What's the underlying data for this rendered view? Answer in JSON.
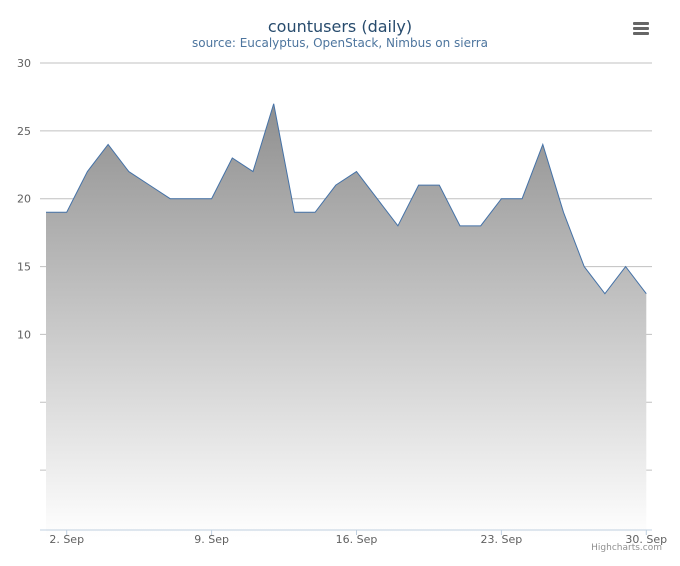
{
  "chart": {
    "title": "countusers (daily)",
    "subtitle": "source: Eucalyptus, OpenStack, Nimbus on sierra",
    "credits": "Highcharts.com",
    "menu_icon": "hamburger-menu-icon"
  },
  "chart_data": {
    "type": "area",
    "title": "countusers (daily)",
    "subtitle": "source: Eucalyptus, OpenStack, Nimbus on sierra",
    "x_dates": [
      "1 Sep",
      "2 Sep",
      "3 Sep",
      "4 Sep",
      "5 Sep",
      "6 Sep",
      "7 Sep",
      "8 Sep",
      "9 Sep",
      "10 Sep",
      "11 Sep",
      "12 Sep",
      "13 Sep",
      "14 Sep",
      "15 Sep",
      "16 Sep",
      "17 Sep",
      "18 Sep",
      "19 Sep",
      "20 Sep",
      "21 Sep",
      "22 Sep",
      "23 Sep",
      "24 Sep",
      "25 Sep",
      "26 Sep",
      "27 Sep",
      "28 Sep",
      "29 Sep",
      "30 Sep"
    ],
    "values": [
      19,
      19,
      22,
      24,
      22,
      21,
      20,
      20,
      20,
      23,
      22,
      27,
      19,
      19,
      21,
      22,
      20,
      18,
      21,
      21,
      18,
      18,
      20,
      20,
      24,
      19,
      15,
      13,
      15,
      13
    ],
    "xticks": [
      "2. Sep",
      "9. Sep",
      "16. Sep",
      "23. Sep",
      "30. Sep"
    ],
    "ytick_labels": [
      "10",
      "15",
      "20",
      "25",
      "30"
    ],
    "ylim": [
      -5,
      30
    ],
    "grid": true,
    "colors": {
      "line": "#4572a7",
      "fill_top": "#8f8f8f",
      "fill_bottom": "#ffffff",
      "grid": "#c0c0c0",
      "axis": "#c0d0e0"
    }
  }
}
